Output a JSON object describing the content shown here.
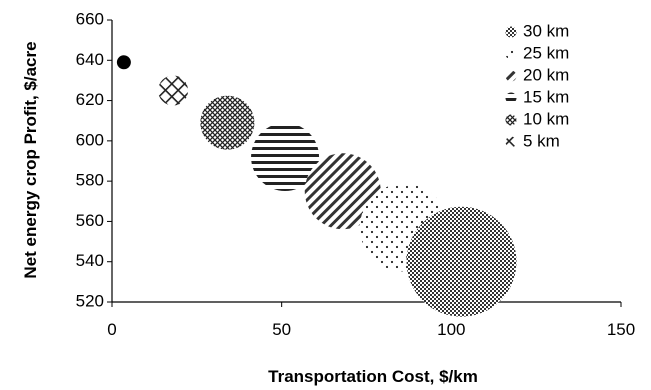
{
  "chart_data": {
    "type": "scatter",
    "title": "",
    "xlabel": "Transportation Cost, $/km",
    "ylabel": "Net energy crop Profit, $/acre",
    "xlim": [
      0,
      150
    ],
    "ylim": [
      520,
      660
    ],
    "xticks": [
      0,
      50,
      100,
      150
    ],
    "yticks": [
      520,
      540,
      560,
      580,
      600,
      620,
      640,
      660
    ],
    "legend_position": "top-right",
    "points": [
      {
        "x": 3.5,
        "y": 639,
        "size": 7,
        "pattern": "solid"
      },
      {
        "x": 18,
        "y": 625,
        "size": 15,
        "pattern": "lattice"
      },
      {
        "x": 34,
        "y": 609,
        "size": 27,
        "pattern": "crosshatch"
      },
      {
        "x": 51,
        "y": 592,
        "size": 34,
        "pattern": "horizontal"
      },
      {
        "x": 68,
        "y": 575,
        "size": 38,
        "pattern": "diagonal"
      },
      {
        "x": 86,
        "y": 557,
        "size": 44,
        "pattern": "dots"
      },
      {
        "x": 103,
        "y": 540,
        "size": 55,
        "pattern": "checker"
      }
    ],
    "series": [
      {
        "name": "30 km",
        "pattern": "checker"
      },
      {
        "name": "25 km",
        "pattern": "dots"
      },
      {
        "name": "20 km",
        "pattern": "diagonal"
      },
      {
        "name": "15 km",
        "pattern": "horizontal"
      },
      {
        "name": "10 km",
        "pattern": "crosshatch"
      },
      {
        "name": "5 km",
        "pattern": "lattice"
      }
    ],
    "colors": {
      "marker": "#000000",
      "axis": "#000000",
      "background": "#ffffff"
    }
  }
}
